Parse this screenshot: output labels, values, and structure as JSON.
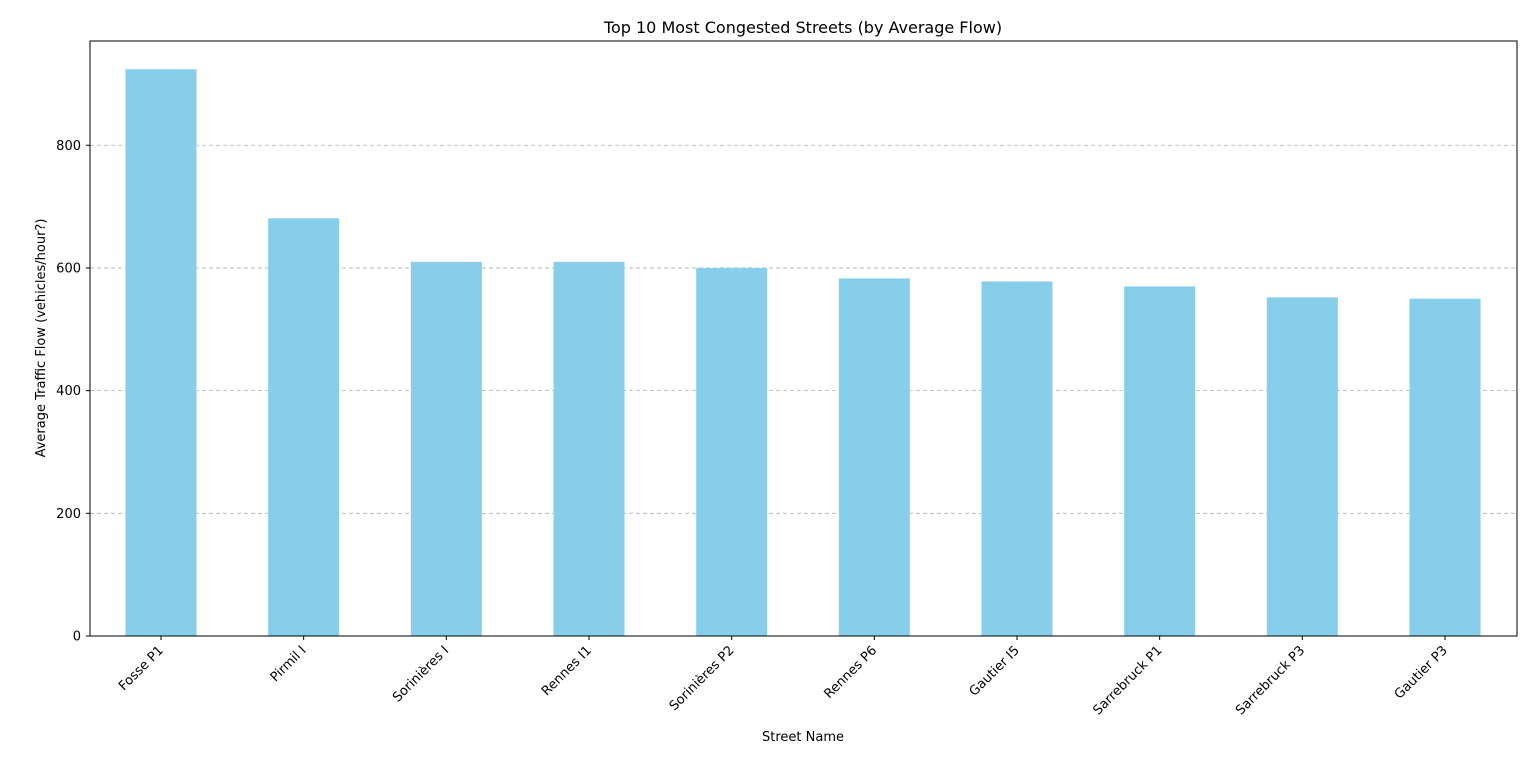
{
  "chart_data": {
    "type": "bar",
    "title": "Top 10 Most Congested Streets (by Average Flow)",
    "xlabel": "Street Name",
    "ylabel": "Average Traffic Flow (vehicles/hour?)",
    "categories": [
      "Fosse P1",
      "Pirmil I",
      "Sorinières I",
      "Rennes I1",
      "Sorinières P2",
      "Rennes P6",
      "Gautier I5",
      "Sarrebruck P1",
      "Sarrebruck P3",
      "Gautier P3"
    ],
    "values": [
      924,
      681,
      610,
      610,
      600,
      583,
      578,
      570,
      552,
      550
    ],
    "ylim": [
      0,
      970
    ],
    "yticks": [
      0,
      200,
      400,
      600,
      800
    ],
    "grid": "y-dashed",
    "bar_color": "#87ceeb"
  }
}
